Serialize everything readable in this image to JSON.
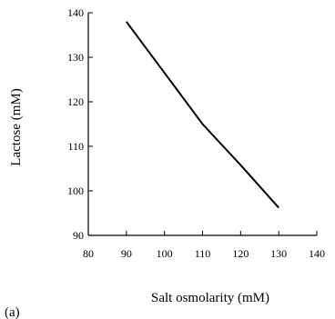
{
  "panel_label": "(a)",
  "chart_data": {
    "type": "line",
    "xlabel": "Salt osmolarity (mM)",
    "ylabel": "Lactose (mM)",
    "xlim": [
      80,
      140
    ],
    "ylim": [
      90,
      140
    ],
    "xticks": [
      80,
      90,
      100,
      110,
      120,
      130,
      140
    ],
    "yticks": [
      90,
      100,
      110,
      120,
      130,
      140
    ],
    "grid": false,
    "series": [
      {
        "x": [
          90,
          100,
          110,
          120,
          130
        ],
        "y": [
          138,
          126.5,
          115,
          105.8,
          96.2
        ]
      }
    ]
  }
}
